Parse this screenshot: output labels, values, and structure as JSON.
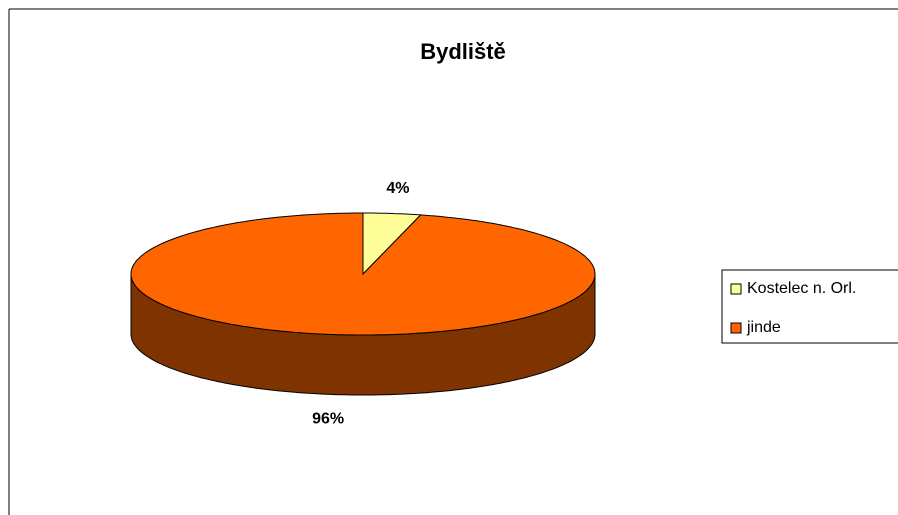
{
  "chart_data": {
    "type": "pie",
    "title": "Bydliště",
    "categories": [
      "Kostelec n. Orl.",
      "jinde"
    ],
    "values": [
      4,
      96
    ],
    "value_labels": [
      "4%",
      "96%"
    ],
    "colors": [
      "#ffff99",
      "#ff6600"
    ],
    "side_colors": [
      "#7f7f4c",
      "#7f3300"
    ],
    "legend": "right"
  }
}
